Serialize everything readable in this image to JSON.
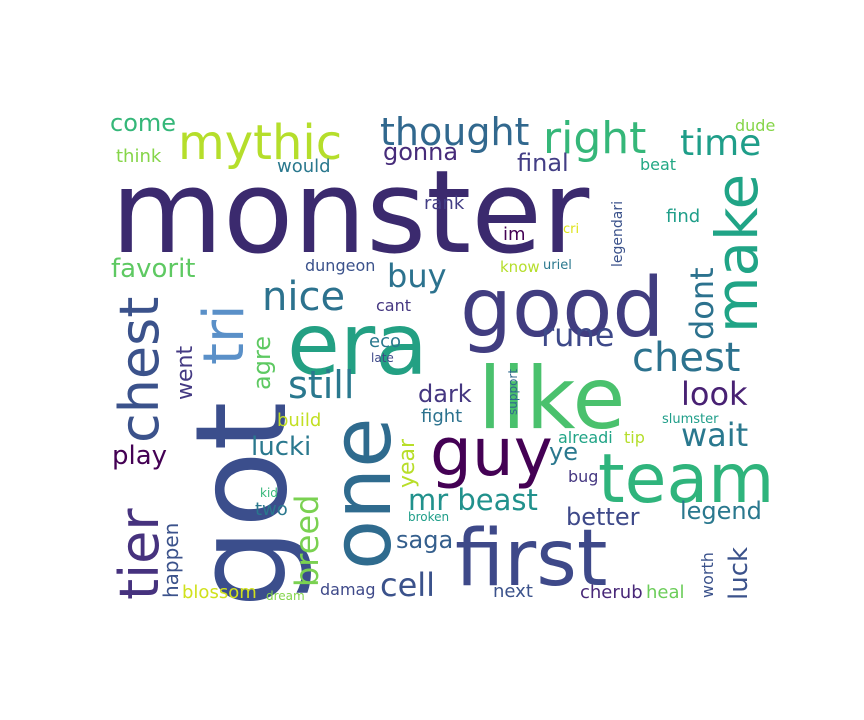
{
  "words": [
    {
      "text": "monster",
      "color": "#3b2a6e"
    },
    {
      "text": "got",
      "color": "#3b4e8c"
    },
    {
      "text": "good",
      "color": "#413d80"
    },
    {
      "text": "era",
      "color": "#23a083"
    },
    {
      "text": "like",
      "color": "#4ac16d"
    },
    {
      "text": "first",
      "color": "#3e4989"
    },
    {
      "text": "one",
      "color": "#2f6b8e"
    },
    {
      "text": "team",
      "color": "#2fb47c"
    },
    {
      "text": "guy",
      "color": "#440154"
    },
    {
      "text": "make",
      "color": "#20a486"
    },
    {
      "text": "tier",
      "color": "#46327e"
    },
    {
      "text": "chest",
      "color": "#3b528b"
    },
    {
      "text": "tri",
      "color": "#5a90c8"
    },
    {
      "text": "mythic",
      "color": "#b5de2b"
    },
    {
      "text": "right",
      "color": "#35b779"
    },
    {
      "text": "thought",
      "color": "#31688e"
    },
    {
      "text": "time",
      "color": "#1f9e89"
    },
    {
      "text": "nice",
      "color": "#2c728e"
    },
    {
      "text": "still",
      "color": "#2a788e"
    },
    {
      "text": "chest",
      "color": "#2c728e"
    },
    {
      "text": "rune",
      "color": "#3e4989"
    },
    {
      "text": "breed",
      "color": "#7ad151"
    },
    {
      "text": "wait",
      "color": "#2a788e"
    },
    {
      "text": "look",
      "color": "#482173"
    },
    {
      "text": "cell",
      "color": "#3b528b"
    },
    {
      "text": "mr beast",
      "color": "#21918c"
    },
    {
      "text": "buy",
      "color": "#2c728e"
    },
    {
      "text": "dont",
      "color": "#2c728e"
    },
    {
      "text": "agre",
      "color": "#5ec962"
    },
    {
      "text": "went",
      "color": "#443a83"
    },
    {
      "text": "year",
      "color": "#b8de29"
    },
    {
      "text": "favorit",
      "color": "#5ec962"
    },
    {
      "text": "gonna",
      "color": "#472c7a"
    },
    {
      "text": "final",
      "color": "#433e85"
    },
    {
      "text": "come",
      "color": "#35b779"
    },
    {
      "text": "play",
      "color": "#440154"
    },
    {
      "text": "lucki",
      "color": "#2a788e"
    },
    {
      "text": "dark",
      "color": "#453781"
    },
    {
      "text": "saga",
      "color": "#355f8d"
    },
    {
      "text": "better",
      "color": "#3e4989"
    },
    {
      "text": "legend",
      "color": "#2a788e"
    },
    {
      "text": "luck",
      "color": "#3b528b"
    },
    {
      "text": "ye",
      "color": "#2a788e"
    },
    {
      "text": "happen",
      "color": "#3b528b"
    },
    {
      "text": "think",
      "color": "#86d549"
    },
    {
      "text": "would",
      "color": "#2a788e"
    },
    {
      "text": "rank",
      "color": "#433e85"
    },
    {
      "text": "find",
      "color": "#1f9e89"
    },
    {
      "text": "im",
      "color": "#440154"
    },
    {
      "text": "dungeon",
      "color": "#3b528b"
    },
    {
      "text": "cant",
      "color": "#453781"
    },
    {
      "text": "eco",
      "color": "#2a788e"
    },
    {
      "text": "fight",
      "color": "#2c728e"
    },
    {
      "text": "build",
      "color": "#c2df23"
    },
    {
      "text": "two",
      "color": "#2a788e"
    },
    {
      "text": "blossom",
      "color": "#d0e11c"
    },
    {
      "text": "damag",
      "color": "#3e4989"
    },
    {
      "text": "next",
      "color": "#3b528b"
    },
    {
      "text": "cherub",
      "color": "#482878"
    },
    {
      "text": "heal",
      "color": "#6ccd5a"
    },
    {
      "text": "worth",
      "color": "#3b528b"
    },
    {
      "text": "bug",
      "color": "#453781"
    },
    {
      "text": "alreadi",
      "color": "#20a486"
    },
    {
      "text": "tip",
      "color": "#b5de2b"
    },
    {
      "text": "slumster",
      "color": "#1f9e89"
    },
    {
      "text": "beat",
      "color": "#22a884"
    },
    {
      "text": "dude",
      "color": "#86d549"
    },
    {
      "text": "legendari",
      "color": "#3b528b"
    },
    {
      "text": "know",
      "color": "#b5de2b"
    },
    {
      "text": "uriel",
      "color": "#2a788e"
    },
    {
      "text": "cri",
      "color": "#dde318"
    },
    {
      "text": "support",
      "color": "#31688e"
    },
    {
      "text": "late",
      "color": "#3e4989"
    },
    {
      "text": "kid",
      "color": "#35b779"
    },
    {
      "text": "broken",
      "color": "#1f9e89"
    },
    {
      "text": "dream",
      "color": "#84d44b"
    }
  ]
}
